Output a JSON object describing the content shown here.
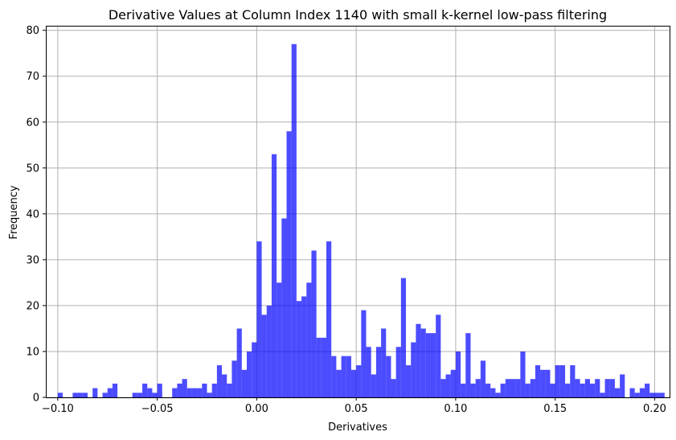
{
  "chart_data": {
    "type": "bar",
    "title": "Derivative Values at Column Index 1140 with small k-kernel low-pass filtering",
    "xlabel": "Derivatives",
    "ylabel": "Frequency",
    "xlim": [
      -0.106,
      0.2075
    ],
    "ylim": [
      0,
      81
    ],
    "grid": true,
    "colors": {
      "bar": "#0000ff",
      "grid": "#b0b0b0"
    },
    "bin_start": -0.1,
    "bin_width": 0.0025,
    "x_ticks": [
      -0.1,
      -0.05,
      0.0,
      0.05,
      0.1,
      0.15,
      0.2
    ],
    "x_tick_labels": [
      "−0.10",
      "−0.05",
      "0.00",
      "0.05",
      "0.10",
      "0.15",
      "0.20"
    ],
    "y_ticks": [
      0,
      10,
      20,
      30,
      40,
      50,
      60,
      70,
      80
    ],
    "y_tick_labels": [
      "0",
      "10",
      "20",
      "30",
      "40",
      "50",
      "60",
      "70",
      "80"
    ],
    "values": [
      1,
      0,
      0,
      1,
      1,
      1,
      0,
      2,
      0,
      1,
      2,
      3,
      0,
      0,
      0,
      1,
      1,
      3,
      2,
      1,
      3,
      0,
      0,
      2,
      3,
      4,
      2,
      2,
      2,
      3,
      1,
      3,
      7,
      5,
      3,
      8,
      15,
      6,
      10,
      12,
      34,
      18,
      20,
      53,
      25,
      39,
      58,
      77,
      21,
      22,
      25,
      32,
      13,
      13,
      34,
      9,
      6,
      9,
      9,
      6,
      7,
      19,
      11,
      5,
      11,
      15,
      9,
      4,
      11,
      26,
      7,
      12,
      16,
      15,
      14,
      14,
      18,
      4,
      5,
      6,
      10,
      3,
      14,
      3,
      4,
      8,
      3,
      2,
      1,
      3,
      4,
      4,
      4,
      10,
      3,
      4,
      7,
      6,
      6,
      3,
      7,
      7,
      3,
      7,
      4,
      3,
      4,
      3,
      4,
      1,
      4,
      4,
      2,
      5,
      0,
      2,
      1,
      2,
      3,
      1,
      1,
      1
    ]
  }
}
